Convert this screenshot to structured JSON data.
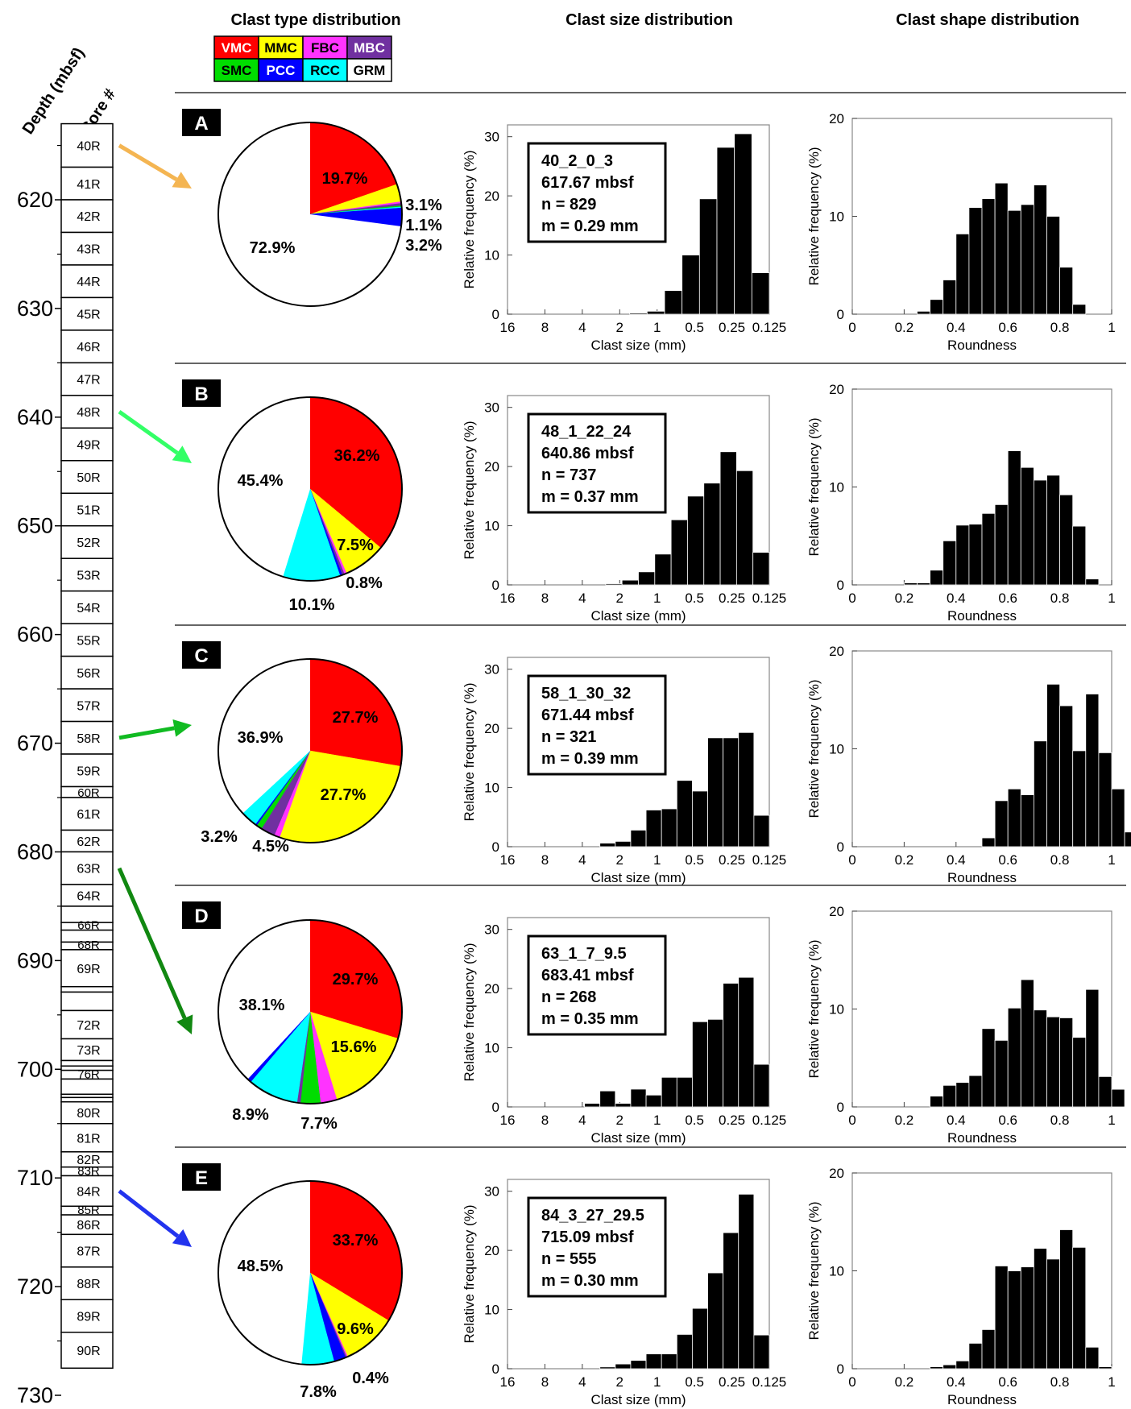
{
  "headers": {
    "depth": "Depth (mbsf)",
    "core": "Core #",
    "type": "Clast type distribution",
    "size": "Clast size distribution",
    "shape": "Clast shape distribution"
  },
  "legend": [
    {
      "code": "VMC",
      "color": "#ff0000"
    },
    {
      "code": "MMC",
      "color": "#ffff00"
    },
    {
      "code": "FBC",
      "color": "#ff33ff"
    },
    {
      "code": "MBC",
      "color": "#7030a0"
    },
    {
      "code": "SMC",
      "color": "#00dd00"
    },
    {
      "code": "PCC",
      "color": "#0000ff"
    },
    {
      "code": "RCC",
      "color": "#00ffff"
    },
    {
      "code": "GRM",
      "color": "#ffffff"
    }
  ],
  "depth_axis": {
    "min": 612,
    "max": 731,
    "ticks": [
      "620",
      "630",
      "640",
      "650",
      "660",
      "670",
      "680",
      "690",
      "700",
      "710",
      "720",
      "730"
    ]
  },
  "cores": [
    {
      "label": "40R",
      "top": 613,
      "bot": 617
    },
    {
      "label": "41R",
      "top": 617,
      "bot": 620
    },
    {
      "label": "42R",
      "top": 620,
      "bot": 623
    },
    {
      "label": "43R",
      "top": 623,
      "bot": 626
    },
    {
      "label": "44R",
      "top": 626,
      "bot": 629
    },
    {
      "label": "45R",
      "top": 629,
      "bot": 632
    },
    {
      "label": "46R",
      "top": 632,
      "bot": 635
    },
    {
      "label": "47R",
      "top": 635,
      "bot": 638
    },
    {
      "label": "48R",
      "top": 638,
      "bot": 641
    },
    {
      "label": "49R",
      "top": 641,
      "bot": 644
    },
    {
      "label": "50R",
      "top": 644,
      "bot": 647
    },
    {
      "label": "51R",
      "top": 647,
      "bot": 650
    },
    {
      "label": "52R",
      "top": 650,
      "bot": 653
    },
    {
      "label": "53R",
      "top": 653,
      "bot": 656
    },
    {
      "label": "54R",
      "top": 656,
      "bot": 659
    },
    {
      "label": "55R",
      "top": 659,
      "bot": 662
    },
    {
      "label": "56R",
      "top": 662,
      "bot": 665
    },
    {
      "label": "57R",
      "top": 665,
      "bot": 668
    },
    {
      "label": "58R",
      "top": 668,
      "bot": 671
    },
    {
      "label": "59R",
      "top": 671,
      "bot": 674
    },
    {
      "label": "60R",
      "top": 674,
      "bot": 675
    },
    {
      "label": "61R",
      "top": 675,
      "bot": 678
    },
    {
      "label": "62R",
      "top": 678,
      "bot": 680
    },
    {
      "label": "63R",
      "top": 680,
      "bot": 683
    },
    {
      "label": "64R",
      "top": 683,
      "bot": 685
    },
    {
      "label": "",
      "top": 685,
      "bot": 686.5
    },
    {
      "label": "66R",
      "top": 686.5,
      "bot": 687.2
    },
    {
      "label": "",
      "top": 687.2,
      "bot": 688.3
    },
    {
      "label": "68R",
      "top": 688.3,
      "bot": 689
    },
    {
      "label": "69R",
      "top": 689,
      "bot": 692.4
    },
    {
      "label": "",
      "top": 692.4,
      "bot": 692.9
    },
    {
      "label": "",
      "top": 692.9,
      "bot": 694.6
    },
    {
      "label": "72R",
      "top": 694.6,
      "bot": 697.2
    },
    {
      "label": "73R",
      "top": 697.2,
      "bot": 699.2
    },
    {
      "label": "",
      "top": 699.2,
      "bot": 699.7
    },
    {
      "label": "",
      "top": 699.7,
      "bot": 700.1
    },
    {
      "label": "76R",
      "top": 700.1,
      "bot": 700.9
    },
    {
      "label": "",
      "top": 700.9,
      "bot": 702.3
    },
    {
      "label": "",
      "top": 702.3,
      "bot": 702.6
    },
    {
      "label": "",
      "top": 702.6,
      "bot": 703
    },
    {
      "label": "80R",
      "top": 703,
      "bot": 705
    },
    {
      "label": "81R",
      "top": 705,
      "bot": 707.6
    },
    {
      "label": "82R",
      "top": 707.6,
      "bot": 709
    },
    {
      "label": "83R",
      "top": 709,
      "bot": 709.8
    },
    {
      "label": "84R",
      "top": 709.8,
      "bot": 712.6
    },
    {
      "label": "85R",
      "top": 712.6,
      "bot": 713.4
    },
    {
      "label": "86R",
      "top": 713.4,
      "bot": 715.2
    },
    {
      "label": "87R",
      "top": 715.2,
      "bot": 718.2
    },
    {
      "label": "88R",
      "top": 718.2,
      "bot": 721.2
    },
    {
      "label": "89R",
      "top": 721.2,
      "bot": 724.2
    },
    {
      "label": "90R",
      "top": 724.2,
      "bot": 727.5
    }
  ],
  "axes": {
    "size_ylabel": "Relative frequency (%)",
    "size_xlabel": "Clast size (mm)",
    "size_xticks": [
      "16",
      "8",
      "4",
      "2",
      "1",
      "0.5",
      "0.25",
      "0.125"
    ],
    "size_yticks": [
      "0",
      "10",
      "20",
      "30"
    ],
    "size_ymax": 32,
    "shape_ylabel": "Relative frequency (%)",
    "shape_xlabel": "Roundness",
    "shape_xticks": [
      "0",
      "0.2",
      "0.4",
      "0.6",
      "0.8",
      "1"
    ],
    "shape_yticks": [
      "0",
      "10",
      "20"
    ],
    "shape_ymax": 20
  },
  "chart_data": [
    {
      "panel": "A",
      "type": "pie",
      "arrow_color": "#f4b552",
      "arrow_core": "40R",
      "slices": [
        {
          "code": "VMC",
          "value": 19.7
        },
        {
          "code": "MMC",
          "value": 3.1
        },
        {
          "code": "FBC",
          "value": 0.3
        },
        {
          "code": "MBC",
          "value": 0.4
        },
        {
          "code": "SMC",
          "value": 0.2
        },
        {
          "code": "RCC",
          "value": 0.2
        },
        {
          "code": "PCC",
          "value": 3.2
        },
        {
          "code": "GRM",
          "value": 72.9
        }
      ],
      "labels": [
        "19.7%",
        "3.1%",
        "1.1%",
        "3.2%",
        "72.9%"
      ],
      "sample": "40_2_0_3",
      "depth": "617.67 mbsf",
      "n": "n = 829",
      "m": "m = 0.29 mm",
      "size_hist": [
        0,
        0,
        0,
        0,
        0,
        0,
        0,
        0.2,
        0.5,
        4,
        10,
        19.5,
        28.2,
        30.5,
        7
      ],
      "shape_hist": [
        0,
        0,
        0,
        0,
        0,
        0.3,
        1.5,
        3.5,
        8.2,
        10.9,
        11.8,
        13.4,
        10.6,
        11.2,
        13.2,
        10,
        4.8,
        1
      ]
    },
    {
      "panel": "B",
      "type": "pie",
      "arrow_color": "#33ff66",
      "arrow_core": "48R",
      "slices": [
        {
          "code": "VMC",
          "value": 36.2
        },
        {
          "code": "MMC",
          "value": 7.5
        },
        {
          "code": "FBC",
          "value": 0.4
        },
        {
          "code": "MBC",
          "value": 0.4
        },
        {
          "code": "PCC",
          "value": 0.4
        },
        {
          "code": "RCC",
          "value": 10.1
        },
        {
          "code": "GRM",
          "value": 45.4
        }
      ],
      "labels": [
        "36.2%",
        "7.5%",
        "0.8%",
        "10.1%",
        "45.4%"
      ],
      "sample": "48_1_22_24",
      "depth": "640.86 mbsf",
      "n": "n = 737",
      "m": "m = 0.37 mm",
      "size_hist": [
        0,
        0,
        0,
        0,
        0,
        0,
        0.2,
        0.8,
        2.2,
        5.2,
        11,
        15,
        17.2,
        22.5,
        19.3,
        5.5
      ],
      "shape_hist": [
        0,
        0,
        0,
        0,
        0.2,
        0.2,
        1.5,
        4.5,
        6.1,
        6.2,
        7.3,
        8.2,
        13.7,
        12,
        10.7,
        11.2,
        9.2,
        6,
        0.6
      ]
    },
    {
      "panel": "C",
      "type": "pie",
      "arrow_color": "#11bb22",
      "arrow_core": "58R",
      "slices": [
        {
          "code": "VMC",
          "value": 27.7
        },
        {
          "code": "MMC",
          "value": 27.7
        },
        {
          "code": "FBC",
          "value": 1
        },
        {
          "code": "MBC",
          "value": 2.5
        },
        {
          "code": "SMC",
          "value": 1
        },
        {
          "code": "PCC",
          "value": 0.3
        },
        {
          "code": "RCC",
          "value": 2.9
        },
        {
          "code": "GRM",
          "value": 36.9
        }
      ],
      "labels": [
        "27.7%",
        "27.7%",
        "3.2%",
        "4.5%",
        "36.9%"
      ],
      "sample": "58_1_30_32",
      "depth": "671.44 mbsf",
      "n": "n = 321",
      "m": "m = 0.39 mm",
      "size_hist": [
        0,
        0,
        0,
        0,
        0,
        0,
        0.6,
        0.9,
        2.8,
        6.2,
        6.4,
        11.2,
        9.4,
        18.4,
        18.4,
        19.3,
        5.3
      ],
      "shape_hist": [
        0,
        0,
        0,
        0,
        0,
        0,
        0,
        0,
        0,
        0,
        0.9,
        4.7,
        5.9,
        5.3,
        10.8,
        16.6,
        14.4,
        9.8,
        15.6,
        9.6,
        5.9,
        1.5
      ]
    },
    {
      "panel": "D",
      "type": "pie",
      "arrow_color": "#118811",
      "arrow_core": "63R",
      "slices": [
        {
          "code": "VMC",
          "value": 29.7
        },
        {
          "code": "MMC",
          "value": 15.6
        },
        {
          "code": "FBC",
          "value": 2.9
        },
        {
          "code": "SMC",
          "value": 3.5
        },
        {
          "code": "MBC",
          "value": 0.6
        },
        {
          "code": "RCC",
          "value": 8.9
        },
        {
          "code": "PCC",
          "value": 0.7
        },
        {
          "code": "GRM",
          "value": 38.1
        }
      ],
      "labels": [
        "29.7%",
        "15.6%",
        "8.9%",
        "7.7%",
        "38.1%"
      ],
      "sample": "63_1_7_9.5",
      "depth": "683.41 mbsf",
      "n": "n = 268",
      "m": "m = 0.35 mm",
      "size_hist": [
        0,
        0,
        0,
        0,
        0,
        0.6,
        2.7,
        0.6,
        3,
        2,
        5,
        5,
        14.4,
        14.8,
        20.9,
        21.9,
        7.2
      ],
      "shape_hist": [
        0,
        0,
        0,
        0,
        0,
        0,
        1.1,
        2.2,
        2.5,
        3.2,
        8,
        6.8,
        10.1,
        13,
        9.9,
        9.2,
        9.1,
        7.1,
        12,
        3.1,
        1.8
      ]
    },
    {
      "panel": "E",
      "type": "pie",
      "arrow_color": "#2233ee",
      "arrow_core": "84R",
      "slices": [
        {
          "code": "VMC",
          "value": 33.7
        },
        {
          "code": "MMC",
          "value": 9.6
        },
        {
          "code": "FBC",
          "value": 0.2
        },
        {
          "code": "MBC",
          "value": 0.2
        },
        {
          "code": "PCC",
          "value": 2.1
        },
        {
          "code": "RCC",
          "value": 5.7
        },
        {
          "code": "GRM",
          "value": 48.5
        }
      ],
      "labels": [
        "33.7%",
        "9.6%",
        "0.4%",
        "7.8%",
        "48.5%"
      ],
      "sample": "84_3_27_29.5",
      "depth": "715.09 mbsf",
      "n": "n = 555",
      "m": "m = 0.30 mm",
      "size_hist": [
        0,
        0,
        0,
        0,
        0,
        0,
        0.3,
        0.8,
        1.4,
        2.5,
        2.5,
        5.8,
        10.2,
        16.2,
        23,
        29.5,
        5.7
      ],
      "shape_hist": [
        0,
        0,
        0,
        0,
        0,
        0,
        0.2,
        0.4,
        0.8,
        2.6,
        4,
        10.5,
        10,
        10.4,
        12.3,
        11.2,
        14.2,
        12.4,
        2.2,
        0.2
      ]
    }
  ]
}
